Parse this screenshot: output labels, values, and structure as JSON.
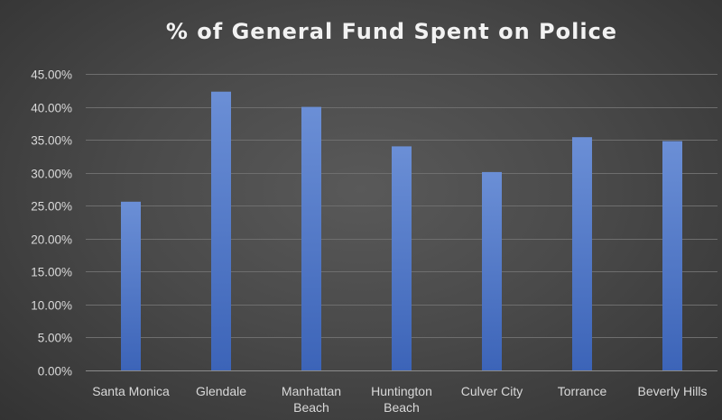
{
  "chart_data": {
    "type": "bar",
    "title": "% of General Fund Spent on Police",
    "xlabel": "",
    "ylabel": "",
    "categories": [
      [
        "Santa Monica"
      ],
      [
        "Glendale"
      ],
      [
        "Manhattan",
        "Beach"
      ],
      [
        "Huntington",
        "Beach"
      ],
      [
        "Culver City"
      ],
      [
        "Torrance"
      ],
      [
        "Beverly Hills"
      ]
    ],
    "values": [
      25.6,
      42.3,
      40.0,
      34.0,
      30.1,
      35.4,
      34.8
    ],
    "ylim": [
      0,
      45
    ],
    "ytick_step": 5,
    "yticks": [
      "0.00%",
      "5.00%",
      "10.00%",
      "15.00%",
      "20.00%",
      "25.00%",
      "30.00%",
      "35.00%",
      "40.00%",
      "45.00%"
    ],
    "grid": true,
    "legend": "none",
    "colors": {
      "bar_top": "#6b8fd6",
      "bar_bottom": "#3c64b8",
      "gridline": "#6e6e6e",
      "text": "#d9d9d9",
      "title": "#f2f2f2"
    }
  }
}
